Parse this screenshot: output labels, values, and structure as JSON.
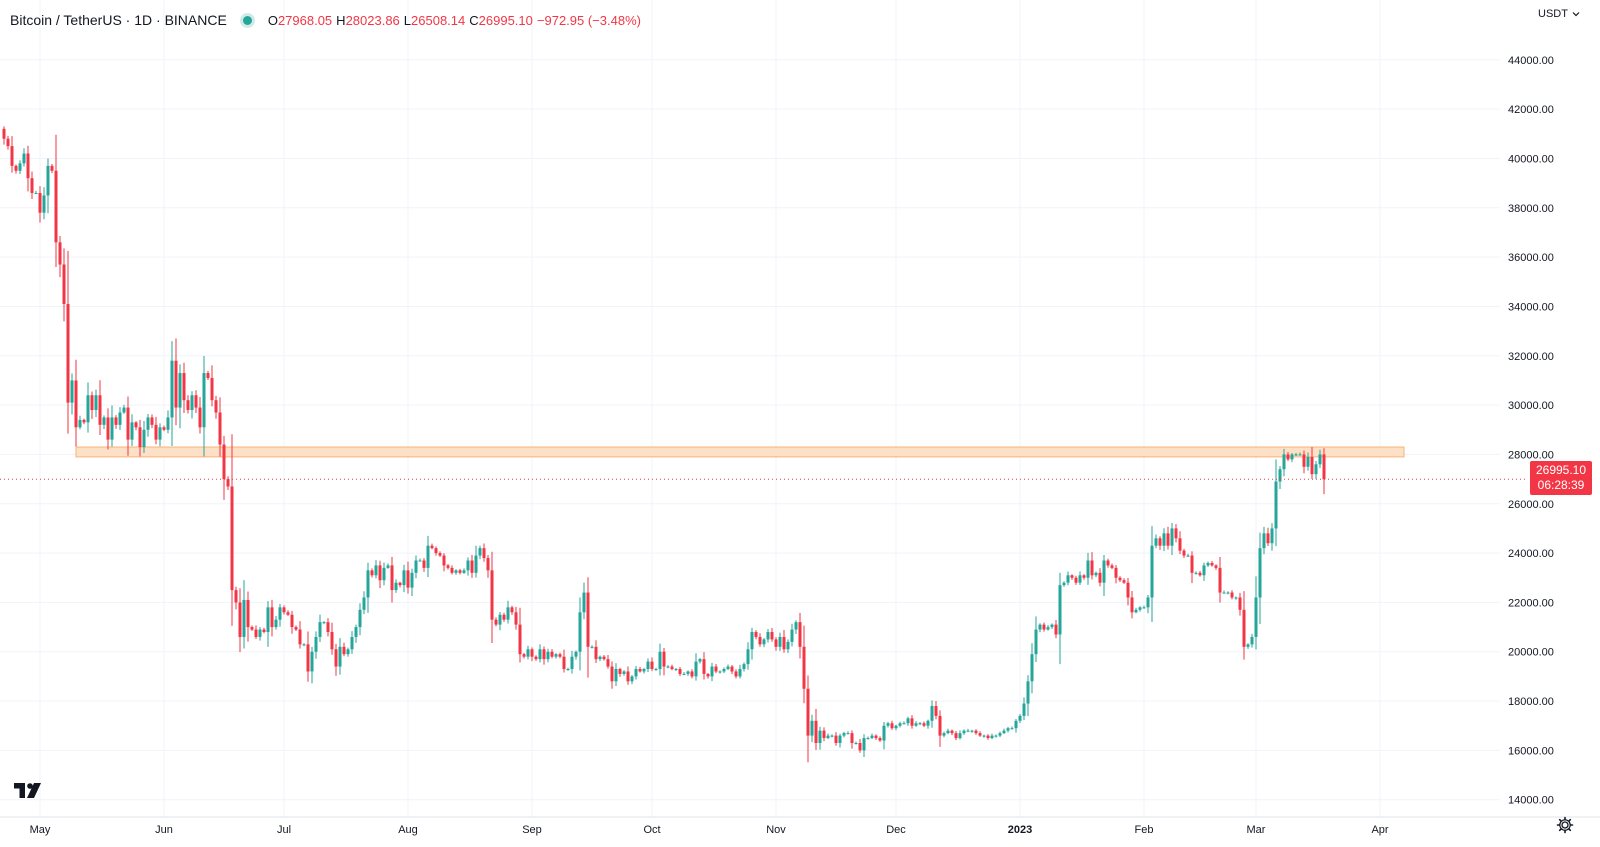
{
  "header": {
    "symbol_title": "Bitcoin / TetherUS · 1D · BINANCE",
    "ohlc": {
      "open_label": "O",
      "open": "27968.05",
      "high_label": "H",
      "high": "28023.86",
      "low_label": "L",
      "low": "26508.14",
      "close_label": "C",
      "close": "26995.10",
      "change": "−972.95 (−3.48%)"
    }
  },
  "currency_selector": {
    "label": "USDT",
    "icon": "chevron-down-icon"
  },
  "last_price": {
    "price": "26995.10",
    "countdown": "06:28:39",
    "color": "#f23645"
  },
  "colors": {
    "up": "#26a69a",
    "down": "#f23645",
    "zone_fill": "#fde0c5",
    "zone_stroke": "#f7b37a"
  },
  "icons": {
    "logo": "tradingview-logo-icon",
    "settings": "gear-icon"
  },
  "chart_data": {
    "type": "candlestick",
    "symbol": "BTC/USDT",
    "interval": "1D",
    "ylim": [
      13300,
      46100
    ],
    "y_ticks": [
      "14000.00",
      "16000.00",
      "18000.00",
      "20000.00",
      "22000.00",
      "24000.00",
      "26000.00",
      "28000.00",
      "30000.00",
      "32000.00",
      "34000.00",
      "36000.00",
      "38000.00",
      "40000.00",
      "42000.00",
      "44000.00"
    ],
    "x_ticks": [
      {
        "label": "May",
        "date": "2022-05-01"
      },
      {
        "label": "Jun",
        "date": "2022-06-01"
      },
      {
        "label": "Jul",
        "date": "2022-07-01"
      },
      {
        "label": "Aug",
        "date": "2022-08-01"
      },
      {
        "label": "Sep",
        "date": "2022-09-01"
      },
      {
        "label": "Oct",
        "date": "2022-10-01"
      },
      {
        "label": "Nov",
        "date": "2022-11-01"
      },
      {
        "label": "Dec",
        "date": "2022-12-01"
      },
      {
        "label": "2023",
        "date": "2023-01-01",
        "bold": true
      },
      {
        "label": "Feb",
        "date": "2023-02-01"
      },
      {
        "label": "Mar",
        "date": "2023-03-01"
      },
      {
        "label": "Apr",
        "date": "2023-04-01"
      }
    ],
    "start_date": "2022-04-22",
    "grid": true,
    "resistance_zone": {
      "from_date": "2022-05-10",
      "to_date": "2023-04-07",
      "low": 27900,
      "high": 28300
    },
    "last_price_line": 26995.1,
    "closes": [
      40800,
      40500,
      39700,
      39500,
      39800,
      40200,
      39200,
      38600,
      38600,
      37800,
      38500,
      39700,
      39500,
      36600,
      35700,
      34100,
      30100,
      31000,
      29100,
      29400,
      29300,
      30400,
      29800,
      30400,
      29200,
      29500,
      28600,
      29500,
      29200,
      29700,
      29900,
      28600,
      29300,
      29100,
      28300,
      29000,
      29500,
      29200,
      28600,
      29100,
      29000,
      29500,
      31800,
      29900,
      31300,
      30200,
      29800,
      30400,
      29900,
      29100,
      31300,
      31100,
      30200,
      29700,
      28400,
      27000,
      26700,
      22500,
      22000,
      20600,
      22100,
      21000,
      20900,
      20600,
      20900,
      20800,
      21800,
      21000,
      21300,
      21800,
      21600,
      21500,
      21000,
      20900,
      20300,
      20300,
      19200,
      20000,
      20600,
      21200,
      21200,
      20800,
      20100,
      19400,
      20200,
      19900,
      20100,
      20600,
      21000,
      21700,
      22200,
      23300,
      23100,
      23500,
      22900,
      23400,
      23500,
      22500,
      22800,
      22700,
      23300,
      22600,
      23200,
      23700,
      23700,
      23400,
      24300,
      24200,
      24000,
      23900,
      23500,
      23400,
      23200,
      23300,
      23200,
      23300,
      23700,
      23200,
      23900,
      24200,
      23800,
      23300,
      21300,
      21100,
      21500,
      21300,
      21800,
      21600,
      21100,
      19900,
      19800,
      20100,
      19800,
      19700,
      20100,
      19700,
      20000,
      19800,
      19900,
      19800,
      19300,
      19300,
      19800,
      20000,
      21600,
      22400,
      20200,
      20200,
      19700,
      19800,
      19700,
      19400,
      18800,
      19300,
      19100,
      19200,
      18800,
      19000,
      19300,
      19200,
      19300,
      19600,
      19300,
      19300,
      20000,
      19400,
      19400,
      19300,
      19300,
      19100,
      19100,
      19200,
      19000,
      19600,
      19700,
      19100,
      19000,
      19400,
      19200,
      19200,
      19300,
      19400,
      19200,
      19000,
      19300,
      19500,
      20100,
      20800,
      20600,
      20300,
      20500,
      20800,
      20500,
      20200,
      20600,
      20100,
      20400,
      20900,
      21200,
      20200,
      18500,
      16600,
      17200,
      16300,
      16800,
      16500,
      16600,
      16600,
      16300,
      16600,
      16700,
      16700,
      16300,
      16300,
      16000,
      16500,
      16500,
      16600,
      16500,
      16400,
      17000,
      17100,
      16900,
      17000,
      17100,
      17100,
      17300,
      17000,
      17100,
      17100,
      17000,
      17200,
      17800,
      17400,
      16600,
      16700,
      16800,
      16700,
      16500,
      16700,
      16800,
      16800,
      16800,
      16700,
      16600,
      16600,
      16500,
      16600,
      16600,
      16700,
      16800,
      16900,
      16900,
      17200,
      17400,
      17900,
      18800,
      19900,
      20900,
      21100,
      20900,
      21000,
      21100,
      20700,
      22700,
      22800,
      23100,
      23000,
      22800,
      23100,
      23000,
      23700,
      23100,
      23200,
      22800,
      23700,
      23500,
      23400,
      23000,
      22900,
      22800,
      22200,
      21600,
      21700,
      21800,
      21800,
      22200,
      24300,
      24600,
      24300,
      24800,
      24300,
      25000,
      24600,
      24100,
      23900,
      23900,
      23200,
      23200,
      23100,
      23500,
      23600,
      23500,
      23400,
      22400,
      22400,
      22400,
      22200,
      22200,
      21700,
      20200,
      20300,
      20600,
      22200,
      24200,
      24800,
      24400,
      25000,
      26900,
      27400,
      28000,
      27800,
      28000,
      28000,
      28000,
      27500,
      27900,
      27200,
      27600,
      28000,
      26995
    ]
  }
}
